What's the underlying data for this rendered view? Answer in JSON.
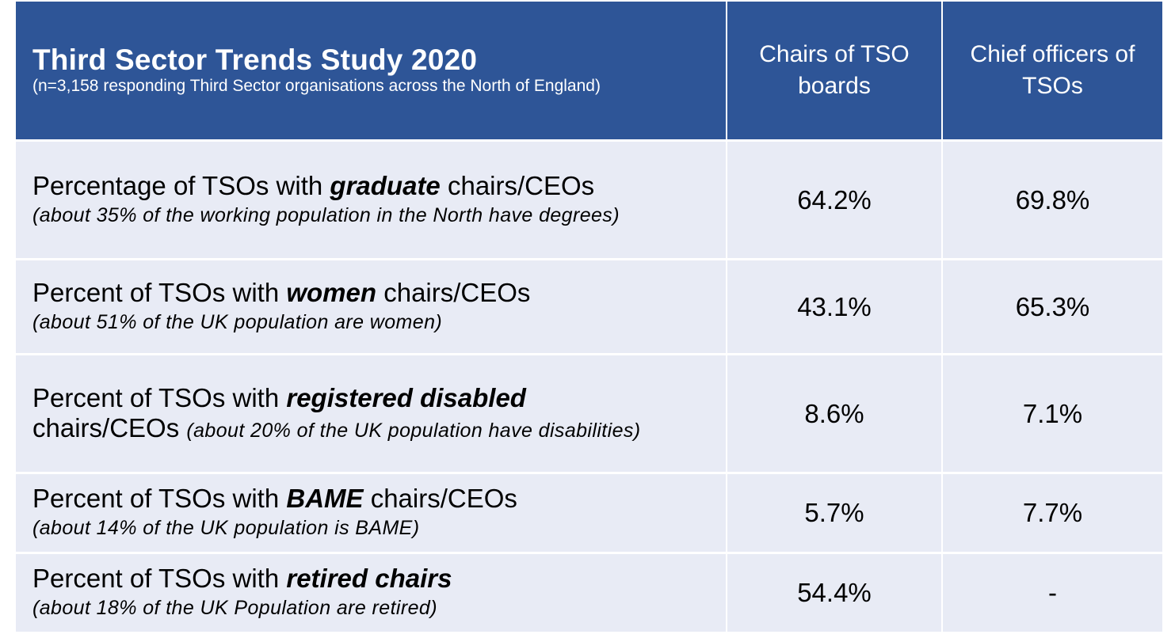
{
  "header": {
    "title": "Third Sector Trends Study 2020",
    "subtitle": "(n=3,158 responding Third Sector organisations across the North of England)",
    "col_chairs": "Chairs of TSO boards",
    "col_chiefs": "Chief officers of TSOs"
  },
  "rows": [
    {
      "prefix": "Percentage of TSOs with ",
      "emphasis": "graduate",
      "suffix": " chairs/CEOs",
      "note": "(about 35% of the working population in the North have degrees)",
      "chairs": "64.2%",
      "chiefs": "69.8%"
    },
    {
      "prefix": "Percent of TSOs with ",
      "emphasis": "women",
      "suffix": " chairs/CEOs",
      "note": "(about 51% of the UK population are women)",
      "chairs": "43.1%",
      "chiefs": "65.3%"
    },
    {
      "prefix": "Percent of TSOs with ",
      "emphasis": "registered disabled",
      "suffix": "chairs/CEOs",
      "note": "(about 20% of the UK population have disabilities)",
      "chairs": "8.6%",
      "chiefs": "7.1%"
    },
    {
      "prefix": "Percent of TSOs with ",
      "emphasis": "BAME",
      "suffix": " chairs/CEOs",
      "note": "(about 14% of the UK population is BAME)",
      "chairs": "5.7%",
      "chiefs": "7.7%"
    },
    {
      "prefix": "Percent of TSOs with ",
      "emphasis": "retired chairs",
      "suffix": "",
      "note": "(about 18% of the UK Population are retired)",
      "chairs": "54.4%",
      "chiefs": "-"
    }
  ],
  "colors": {
    "header_bg": "#2e5597",
    "row_bg": "#e8ebf5",
    "header_text": "#ffffff"
  }
}
